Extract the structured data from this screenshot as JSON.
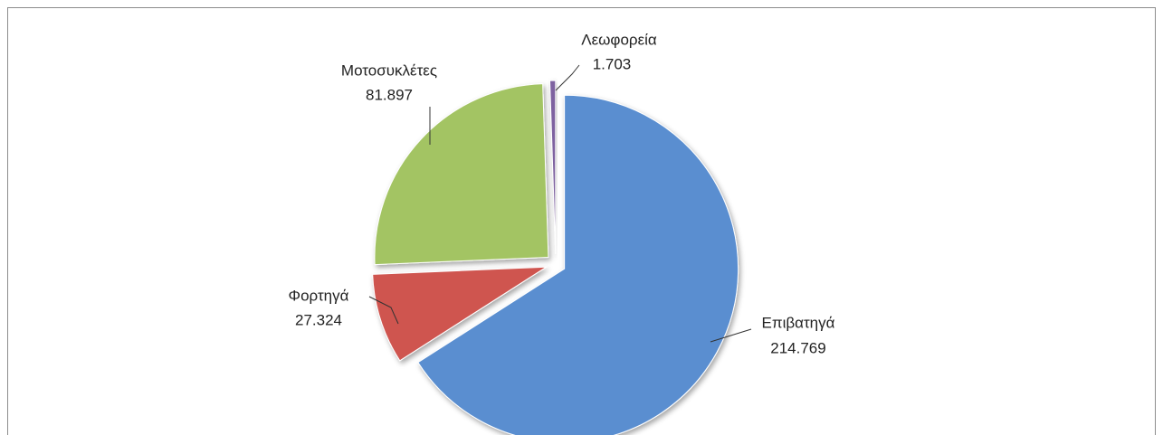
{
  "chart_data": {
    "type": "pie",
    "categories": [
      "Επιβατηγά",
      "Φορτηγά",
      "Μοτοσυκλέτες",
      "Λεωφορεία"
    ],
    "values": [
      214769,
      27324,
      81897,
      1703
    ],
    "value_labels": [
      "214.769",
      "27.324",
      "81.897",
      "1.703"
    ],
    "colors": [
      "#5a8ed0",
      "#cf5450",
      "#a3c463",
      "#7e62a0"
    ]
  }
}
